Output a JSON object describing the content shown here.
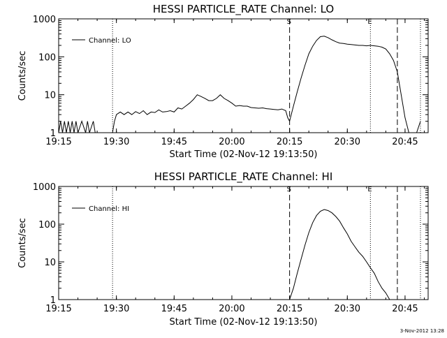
{
  "chart_data": [
    {
      "type": "line",
      "title": "HESSI PARTICLE_RATE Channel: LO",
      "xlabel": "Start Time (02-Nov-12 19:13:50)",
      "ylabel": "Counts/sec",
      "yscale": "log",
      "ylim": [
        1,
        1000
      ],
      "xlim": [
        "19:15",
        "20:51"
      ],
      "x_ticks": [
        "19:15",
        "19:30",
        "19:45",
        "20:00",
        "20:15",
        "20:30",
        "20:45"
      ],
      "y_ticks": [
        "1",
        "10",
        "100",
        "1000"
      ],
      "legend": {
        "entries": [
          "Channel: LO"
        ],
        "placement": "top-left"
      },
      "markers": [
        {
          "label": "S",
          "time": "20:15",
          "style": "dashed"
        },
        {
          "label": "E",
          "time": "20:36",
          "style": "dotted"
        }
      ],
      "vlines": [
        {
          "time": "19:29",
          "style": "dotted"
        },
        {
          "time": "20:15",
          "style": "dashed"
        },
        {
          "time": "20:36",
          "style": "dotted"
        },
        {
          "time": "20:43",
          "style": "dashed"
        },
        {
          "time": "20:49",
          "style": "dotted"
        }
      ],
      "series": [
        {
          "name": "Channel: LO",
          "x": [
            "19:15",
            "19:15:30",
            "19:16",
            "19:16:30",
            "19:17",
            "19:17:30",
            "19:18",
            "19:18:30",
            "19:19",
            "19:19:30",
            "19:20",
            "19:21",
            "19:22",
            "19:22:30",
            "19:23",
            "19:24",
            "19:24:30",
            "19:25",
            "19:26",
            "19:27",
            "19:28",
            "19:29",
            "19:29:30",
            "19:30",
            "19:31",
            "19:32",
            "19:33",
            "19:34",
            "19:35",
            "19:36",
            "19:37",
            "19:38",
            "19:39",
            "19:40",
            "19:41",
            "19:42",
            "19:43",
            "19:44",
            "19:45",
            "19:46",
            "19:47",
            "19:48",
            "19:49",
            "19:50",
            "19:51",
            "19:52",
            "19:53",
            "19:54",
            "19:55",
            "19:56",
            "19:57",
            "19:58",
            "19:59",
            "20:00",
            "20:01",
            "20:02",
            "20:03",
            "20:04",
            "20:05",
            "20:06",
            "20:07",
            "20:08",
            "20:09",
            "20:10",
            "20:11",
            "20:12",
            "20:13",
            "20:14",
            "20:14:30",
            "20:15",
            "20:16",
            "20:17",
            "20:18",
            "20:19",
            "20:20",
            "20:21",
            "20:22",
            "20:23",
            "20:24",
            "20:25",
            "20:26",
            "20:27",
            "20:28",
            "20:29",
            "20:30",
            "20:31",
            "20:32",
            "20:33",
            "20:34",
            "20:35",
            "20:36",
            "20:37",
            "20:38",
            "20:39",
            "20:40",
            "20:41",
            "20:42",
            "20:43",
            "20:44",
            "20:45",
            "20:46",
            "20:47",
            "20:48",
            "20:49"
          ],
          "y": [
            1,
            2,
            1,
            2,
            1,
            2,
            1,
            2,
            1,
            2,
            1,
            2,
            1,
            2,
            1,
            2,
            1,
            1,
            1,
            1,
            1,
            1,
            2,
            3,
            3.5,
            3,
            3.5,
            3,
            3.6,
            3.2,
            3.8,
            3,
            3.5,
            3.4,
            4,
            3.5,
            3.6,
            3.8,
            3.5,
            4.5,
            4.2,
            5,
            6,
            7.5,
            10,
            9,
            8,
            7,
            7,
            8,
            10,
            8,
            7,
            6,
            5,
            5.2,
            5,
            5,
            4.6,
            4.5,
            4.4,
            4.5,
            4.3,
            4.2,
            4.1,
            4,
            4.2,
            3.8,
            2.5,
            2,
            5,
            12,
            28,
            60,
            120,
            190,
            270,
            340,
            350,
            320,
            280,
            250,
            230,
            225,
            215,
            210,
            205,
            200,
            200,
            195,
            200,
            195,
            190,
            180,
            160,
            120,
            80,
            40,
            10,
            2.5,
            1,
            1,
            1,
            2
          ]
        }
      ]
    },
    {
      "type": "line",
      "title": "HESSI PARTICLE_RATE Channel: HI",
      "xlabel": "Start Time (02-Nov-12 19:13:50)",
      "ylabel": "Counts/sec",
      "yscale": "log",
      "ylim": [
        1,
        1000
      ],
      "xlim": [
        "19:15",
        "20:51"
      ],
      "x_ticks": [
        "19:15",
        "19:30",
        "19:45",
        "20:00",
        "20:15",
        "20:30",
        "20:45"
      ],
      "y_ticks": [
        "1",
        "10",
        "100",
        "1000"
      ],
      "legend": {
        "entries": [
          "Channel: HI"
        ],
        "placement": "top-left"
      },
      "markers": [
        {
          "label": "S",
          "time": "20:15",
          "style": "dashed"
        },
        {
          "label": "E",
          "time": "20:36",
          "style": "dotted"
        }
      ],
      "vlines": [
        {
          "time": "19:29",
          "style": "dotted"
        },
        {
          "time": "20:15",
          "style": "dashed"
        },
        {
          "time": "20:36",
          "style": "dotted"
        },
        {
          "time": "20:43",
          "style": "dashed"
        },
        {
          "time": "20:49",
          "style": "dotted"
        }
      ],
      "series": [
        {
          "name": "Channel: HI",
          "x": [
            "20:15",
            "20:16",
            "20:17",
            "20:18",
            "20:19",
            "20:20",
            "20:21",
            "20:22",
            "20:23",
            "20:24",
            "20:25",
            "20:26",
            "20:27",
            "20:28",
            "20:29",
            "20:30",
            "20:31",
            "20:32",
            "20:33",
            "20:34",
            "20:35",
            "20:36",
            "20:37",
            "20:38",
            "20:39",
            "20:40",
            "20:41"
          ],
          "y": [
            1,
            2,
            5,
            12,
            28,
            60,
            110,
            170,
            220,
            245,
            230,
            200,
            160,
            120,
            80,
            55,
            35,
            25,
            18,
            14,
            10,
            7,
            5,
            3,
            2,
            1.5,
            1
          ]
        }
      ]
    }
  ],
  "timestamp": "3-Nov-2012 13:28"
}
